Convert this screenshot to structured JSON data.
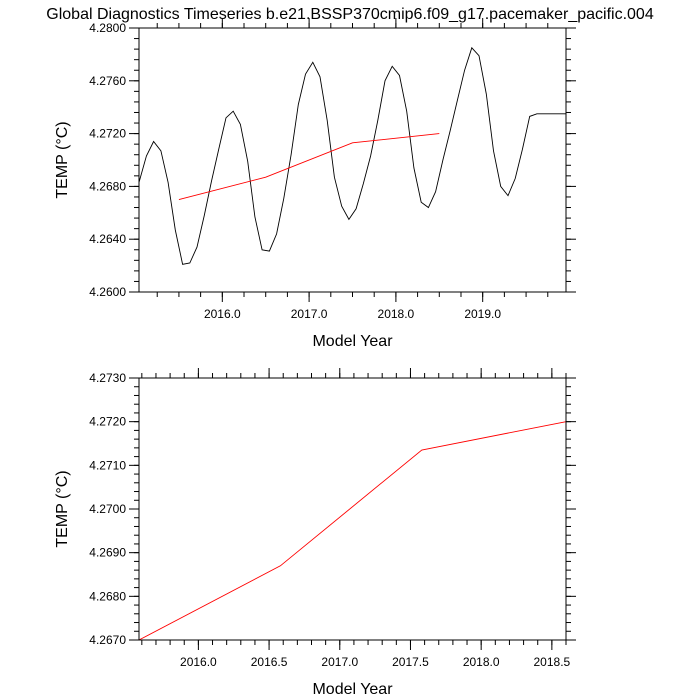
{
  "title": "Global Diagnostics Timeseries b.e21.BSSP370cmip6.f09_g17.pacemaker_pacific.004",
  "colors": {
    "monthly": "#000000",
    "annual": "#ff0000",
    "frame": "#000000"
  },
  "chart_data": [
    {
      "type": "line",
      "xlabel": "Model Year",
      "ylabel": "TEMP (°C)",
      "xlim": [
        2015.04,
        2019.96
      ],
      "ylim": [
        4.26,
        4.28
      ],
      "x_ticks": [
        2016.0,
        2017.0,
        2018.0,
        2019.0
      ],
      "x_tick_labels": [
        "2016.0",
        "2017.0",
        "2018.0",
        "2019.0"
      ],
      "x_minor_step": 0.25,
      "y_ticks": [
        4.26,
        4.264,
        4.268,
        4.272,
        4.276,
        4.28
      ],
      "y_tick_labels": [
        "4.2600",
        "4.2640",
        "4.2680",
        "4.2720",
        "4.2760",
        "4.2800"
      ],
      "y_minor_step": 0.0008,
      "series": [
        {
          "color": "#000000",
          "x": [
            2015.04,
            2015.125,
            2015.208,
            2015.292,
            2015.375,
            2015.458,
            2015.542,
            2015.625,
            2015.708,
            2015.792,
            2015.875,
            2015.958,
            2016.042,
            2016.125,
            2016.208,
            2016.292,
            2016.375,
            2016.458,
            2016.542,
            2016.625,
            2016.708,
            2016.792,
            2016.875,
            2016.958,
            2017.042,
            2017.125,
            2017.208,
            2017.292,
            2017.375,
            2017.458,
            2017.542,
            2017.625,
            2017.708,
            2017.792,
            2017.875,
            2017.958,
            2018.042,
            2018.125,
            2018.208,
            2018.292,
            2018.375,
            2018.458,
            2018.542,
            2018.625,
            2018.708,
            2018.792,
            2018.875,
            2018.958,
            2019.042,
            2019.125,
            2019.208,
            2019.292,
            2019.375,
            2019.458,
            2019.542,
            2019.625,
            2019.708,
            2019.792,
            2019.875,
            2019.96
          ],
          "y": [
            4.2683,
            4.2703,
            4.2714,
            4.2707,
            4.2683,
            4.2647,
            4.2621,
            4.2622,
            4.2634,
            4.2658,
            4.2684,
            4.2708,
            4.2732,
            4.2737,
            4.2727,
            4.2699,
            4.2657,
            4.2632,
            4.2631,
            4.2644,
            4.2671,
            4.2704,
            4.2742,
            4.2765,
            4.2774,
            4.2763,
            4.273,
            4.2687,
            4.2665,
            4.2655,
            4.2663,
            4.2682,
            4.2703,
            4.273,
            4.276,
            4.2771,
            4.2764,
            4.2737,
            4.2694,
            4.2668,
            4.2664,
            4.2676,
            4.27,
            4.2722,
            4.2745,
            4.2768,
            4.2785,
            4.2779,
            4.275,
            4.2707,
            4.268,
            4.2673,
            4.2686,
            4.2708,
            4.2733,
            4.2735,
            4.2735,
            4.2735,
            4.2735,
            4.2735
          ]
        },
        {
          "color": "#ff0000",
          "x": [
            2015.5,
            2016.5,
            2017.5,
            2018.5
          ],
          "y": [
            4.267,
            4.2687,
            4.2713,
            4.272
          ]
        }
      ]
    },
    {
      "type": "line",
      "xlabel": "Model Year",
      "ylabel": "TEMP (°C)",
      "xlim": [
        2015.58,
        2018.6
      ],
      "ylim": [
        4.267,
        4.273
      ],
      "x_ticks": [
        2016.0,
        2016.5,
        2017.0,
        2017.5,
        2018.0,
        2018.5
      ],
      "x_tick_labels": [
        "2016.0",
        "2016.5",
        "2017.0",
        "2017.5",
        "2018.0",
        "2018.5"
      ],
      "x_minor_step": 0.1,
      "y_ticks": [
        4.267,
        4.268,
        4.269,
        4.27,
        4.271,
        4.272,
        4.273
      ],
      "y_tick_labels": [
        "4.2670",
        "4.2680",
        "4.2690",
        "4.2700",
        "4.2710",
        "4.2720",
        "4.2730"
      ],
      "y_minor_step": 0.0002,
      "series": [
        {
          "color": "#ff0000",
          "x": [
            2015.58,
            2016.58,
            2017.58,
            2018.6
          ],
          "y": [
            4.267,
            4.2687,
            4.27135,
            4.272
          ]
        }
      ]
    }
  ]
}
